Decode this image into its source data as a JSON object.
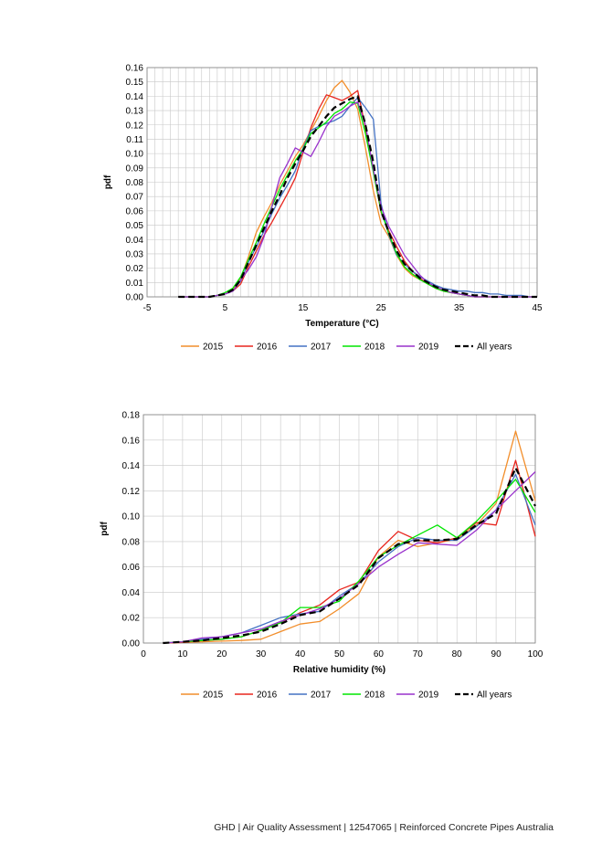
{
  "footer": {
    "text": "GHD |  Air Quality Assessment | 12547065 | Reinforced Concrete Pipes Australia"
  },
  "chart_data": [
    {
      "type": "line",
      "title": "",
      "xlabel": "Temperature (°C)",
      "ylabel": "pdf",
      "xlim": [
        -5,
        45
      ],
      "ylim": [
        0,
        0.16
      ],
      "xticks": [
        -5,
        5,
        15,
        25,
        35,
        45
      ],
      "xtick_labels": [
        "-5",
        "5",
        "15",
        "25",
        "35",
        "45"
      ],
      "yticks": [
        0,
        0.01,
        0.02,
        0.03,
        0.04,
        0.05,
        0.06,
        0.07,
        0.08,
        0.09,
        0.1,
        0.11,
        0.12,
        0.13,
        0.14,
        0.15,
        0.16
      ],
      "ytick_labels": [
        "0.00",
        "0.01",
        "0.02",
        "0.03",
        "0.04",
        "0.05",
        "0.06",
        "0.07",
        "0.08",
        "0.09",
        "0.10",
        "0.11",
        "0.12",
        "0.13",
        "0.14",
        "0.15",
        "0.16"
      ],
      "x": [
        -1,
        0,
        1,
        2,
        3,
        4,
        5,
        6,
        7,
        8,
        9,
        10,
        11,
        12,
        13,
        14,
        15,
        16,
        17,
        18,
        19,
        20,
        21,
        22,
        23,
        24,
        25,
        26,
        27,
        28,
        29,
        30,
        31,
        32,
        33,
        34,
        35,
        36,
        37,
        38,
        39,
        40,
        41,
        42,
        43,
        44,
        45
      ],
      "legend_position": "bottom",
      "grid": true,
      "series": [
        {
          "name": "2015",
          "color": "#f28e2b",
          "dashed": false,
          "values": [
            0,
            0,
            0,
            0,
            0,
            0.001,
            0.002,
            0.005,
            0.013,
            0.028,
            0.045,
            0.056,
            0.066,
            0.078,
            0.088,
            0.098,
            0.106,
            0.116,
            0.126,
            0.137,
            0.146,
            0.151,
            0.143,
            0.131,
            0.104,
            0.074,
            0.051,
            0.042,
            0.029,
            0.02,
            0.015,
            0.012,
            0.009,
            0.007,
            0.005,
            0.003,
            0.002,
            0.001,
            0,
            0,
            0,
            0,
            0,
            0,
            0,
            0,
            0
          ]
        },
        {
          "name": "2016",
          "color": "#e8261e",
          "dashed": false,
          "values": [
            0,
            0,
            0,
            0,
            0,
            0.001,
            0.002,
            0.004,
            0.009,
            0.021,
            0.032,
            0.043,
            0.052,
            0.062,
            0.072,
            0.083,
            0.101,
            0.118,
            0.131,
            0.141,
            0.139,
            0.137,
            0.14,
            0.144,
            0.118,
            0.088,
            0.059,
            0.046,
            0.035,
            0.025,
            0.018,
            0.013,
            0.009,
            0.006,
            0.004,
            0.003,
            0.002,
            0.001,
            0,
            0,
            0,
            0,
            0,
            0,
            0,
            0,
            0
          ]
        },
        {
          "name": "2017",
          "color": "#4472c4",
          "dashed": false,
          "values": [
            0,
            0,
            0,
            0,
            0,
            0.001,
            0.002,
            0.004,
            0.011,
            0.024,
            0.035,
            0.046,
            0.058,
            0.069,
            0.078,
            0.088,
            0.104,
            0.116,
            0.119,
            0.121,
            0.123,
            0.126,
            0.133,
            0.139,
            0.132,
            0.124,
            0.065,
            0.043,
            0.029,
            0.023,
            0.018,
            0.014,
            0.011,
            0.008,
            0.006,
            0.005,
            0.004,
            0.004,
            0.003,
            0.003,
            0.002,
            0.002,
            0.001,
            0.001,
            0.001,
            0,
            0
          ]
        },
        {
          "name": "2018",
          "color": "#00e600",
          "dashed": false,
          "values": [
            0,
            0,
            0,
            0,
            0,
            0.001,
            0.003,
            0.006,
            0.014,
            0.026,
            0.038,
            0.051,
            0.063,
            0.075,
            0.085,
            0.095,
            0.103,
            0.114,
            0.118,
            0.122,
            0.128,
            0.131,
            0.136,
            0.135,
            0.114,
            0.087,
            0.06,
            0.044,
            0.03,
            0.021,
            0.016,
            0.012,
            0.009,
            0.006,
            0.004,
            0.003,
            0.002,
            0.001,
            0,
            0,
            0,
            0,
            0,
            0,
            0,
            0,
            0
          ]
        },
        {
          "name": "2019",
          "color": "#9932cc",
          "dashed": false,
          "values": [
            0,
            0,
            0,
            0,
            0,
            0.001,
            0.002,
            0.004,
            0.012,
            0.019,
            0.028,
            0.042,
            0.063,
            0.083,
            0.093,
            0.104,
            0.101,
            0.098,
            0.108,
            0.119,
            0.126,
            0.129,
            0.133,
            0.136,
            0.12,
            0.089,
            0.063,
            0.049,
            0.039,
            0.029,
            0.022,
            0.015,
            0.01,
            0.007,
            0.005,
            0.003,
            0.002,
            0.001,
            0,
            0,
            0,
            0,
            0,
            0,
            0,
            0,
            0
          ]
        },
        {
          "name": "All years",
          "color": "#000000",
          "dashed": true,
          "values": [
            0,
            0,
            0,
            0,
            0,
            0.001,
            0.002,
            0.005,
            0.012,
            0.024,
            0.036,
            0.048,
            0.06,
            0.071,
            0.083,
            0.093,
            0.102,
            0.112,
            0.119,
            0.126,
            0.132,
            0.135,
            0.138,
            0.14,
            0.12,
            0.094,
            0.06,
            0.045,
            0.032,
            0.023,
            0.018,
            0.013,
            0.01,
            0.007,
            0.005,
            0.004,
            0.003,
            0.002,
            0.001,
            0.001,
            0,
            0,
            0,
            0,
            0,
            0,
            0
          ]
        }
      ]
    },
    {
      "type": "line",
      "title": "",
      "xlabel": "Relative humidity (%)",
      "ylabel": "pdf",
      "xlim": [
        0,
        100
      ],
      "ylim": [
        0,
        0.18
      ],
      "xticks": [
        0,
        10,
        20,
        30,
        40,
        50,
        60,
        70,
        80,
        90,
        100
      ],
      "xtick_labels": [
        "0",
        "10",
        "20",
        "30",
        "40",
        "50",
        "60",
        "70",
        "80",
        "90",
        "100"
      ],
      "yticks": [
        0,
        0.02,
        0.04,
        0.06,
        0.08,
        0.1,
        0.12,
        0.14,
        0.16,
        0.18
      ],
      "ytick_labels": [
        "0.00",
        "0.02",
        "0.04",
        "0.06",
        "0.08",
        "0.10",
        "0.12",
        "0.14",
        "0.16",
        "0.18"
      ],
      "x": [
        5,
        10,
        15,
        20,
        25,
        30,
        35,
        40,
        45,
        50,
        55,
        60,
        65,
        70,
        75,
        80,
        85,
        90,
        95,
        100
      ],
      "legend_position": "bottom",
      "grid": true,
      "series": [
        {
          "name": "2015",
          "color": "#f28e2b",
          "dashed": false,
          "values": [
            0,
            0.0005,
            0.001,
            0.0015,
            0.002,
            0.003,
            0.009,
            0.015,
            0.017,
            0.027,
            0.039,
            0.068,
            0.081,
            0.076,
            0.079,
            0.082,
            0.093,
            0.11,
            0.167,
            0.112
          ]
        },
        {
          "name": "2016",
          "color": "#e8261e",
          "dashed": false,
          "values": [
            0,
            0.0005,
            0.002,
            0.003,
            0.005,
            0.01,
            0.016,
            0.024,
            0.03,
            0.042,
            0.048,
            0.073,
            0.088,
            0.081,
            0.079,
            0.083,
            0.095,
            0.093,
            0.144,
            0.084
          ]
        },
        {
          "name": "2017",
          "color": "#4472c4",
          "dashed": false,
          "values": [
            0,
            0.001,
            0.003,
            0.005,
            0.008,
            0.014,
            0.02,
            0.023,
            0.025,
            0.037,
            0.047,
            0.064,
            0.076,
            0.083,
            0.081,
            0.081,
            0.092,
            0.105,
            0.133,
            0.093
          ]
        },
        {
          "name": "2018",
          "color": "#00e600",
          "dashed": false,
          "values": [
            0,
            0.001,
            0.002,
            0.003,
            0.005,
            0.01,
            0.016,
            0.028,
            0.028,
            0.033,
            0.049,
            0.068,
            0.077,
            0.085,
            0.093,
            0.083,
            0.096,
            0.112,
            0.129,
            0.103
          ]
        },
        {
          "name": "2019",
          "color": "#9932cc",
          "dashed": false,
          "values": [
            0,
            0.001,
            0.004,
            0.005,
            0.008,
            0.011,
            0.017,
            0.022,
            0.027,
            0.035,
            0.047,
            0.06,
            0.07,
            0.079,
            0.078,
            0.077,
            0.089,
            0.105,
            0.12,
            0.135
          ]
        },
        {
          "name": "All years",
          "color": "#000000",
          "dashed": true,
          "values": [
            0,
            0.001,
            0.002,
            0.004,
            0.006,
            0.009,
            0.015,
            0.022,
            0.025,
            0.035,
            0.046,
            0.067,
            0.078,
            0.081,
            0.081,
            0.082,
            0.093,
            0.102,
            0.138,
            0.108
          ]
        }
      ]
    }
  ]
}
